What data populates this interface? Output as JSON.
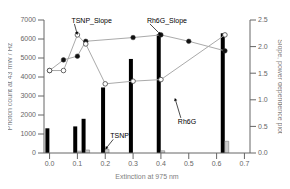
{
  "chart_data": {
    "type": "bar",
    "xlabel": "Extinction at 975 nm",
    "ylabel": "Photon count at 43 mW / Hz",
    "y2label": "Slope, power dependence plot",
    "xlim": [
      -0.02,
      0.72
    ],
    "xticks": [
      {
        "value": 0.0,
        "label": "0.0"
      },
      0.1,
      0.2,
      0.3,
      0.4,
      0.5,
      0.6,
      0.7
    ],
    "ylim": [
      0,
      7000
    ],
    "yticks": [
      0,
      1000,
      2000,
      3000,
      4000,
      5000,
      6000,
      7000
    ],
    "y2lim": [
      0,
      2.5
    ],
    "y2ticks": [
      {
        "value": 0,
        "label": "0.0"
      },
      0.5,
      {
        "value": 1.0,
        "label": "1.0"
      },
      1.5,
      {
        "value": 2.0,
        "label": "2.0"
      },
      2.5
    ],
    "grid": false,
    "series": [
      {
        "name": "Rh6G",
        "type": "bar",
        "color": "#000000",
        "x": [
          0.0,
          0.1,
          0.13,
          0.2,
          0.3,
          0.4,
          0.63
        ],
        "values": [
          1300,
          1400,
          1800,
          3450,
          4950,
          6250,
          6300
        ]
      },
      {
        "name": "TSNP",
        "type": "bar",
        "color": "#cccccc",
        "x": [
          0.1,
          0.13,
          0.2,
          0.3,
          0.4,
          0.63
        ],
        "values": [
          100,
          160,
          190,
          0,
          120,
          620
        ]
      },
      {
        "name": "Rh6G_Slope",
        "type": "line",
        "axis": "y2",
        "color": "#aaaaaa",
        "marker": "circle",
        "x": [
          0.0,
          0.05,
          0.1,
          0.13,
          0.3,
          0.4,
          0.5,
          0.63
        ],
        "values": [
          1.55,
          1.75,
          1.82,
          2.1,
          2.17,
          2.22,
          2.1,
          1.92
        ]
      },
      {
        "name": "TSNP_Slope",
        "type": "line",
        "axis": "y2",
        "color": "#aaaaaa",
        "marker": "open_circle",
        "x": [
          0.0,
          0.05,
          0.1,
          0.13,
          0.2,
          0.3,
          0.4,
          0.63
        ],
        "values": [
          1.55,
          1.55,
          2.22,
          2.05,
          1.3,
          1.35,
          1.38,
          2.22
        ]
      }
    ],
    "annotations": [
      {
        "text": "TSNP_Slope",
        "x": 0.1,
        "y": 2.22,
        "axis": "y2"
      },
      {
        "text": "Rh6G_Slope",
        "x": 0.4,
        "y": 2.22,
        "axis": "y2"
      },
      {
        "text": "Rh6G",
        "x": 0.45,
        "y": 2900,
        "axis": "y"
      },
      {
        "text": "TSNP",
        "x": 0.2,
        "y": 190,
        "axis": "y"
      }
    ]
  }
}
